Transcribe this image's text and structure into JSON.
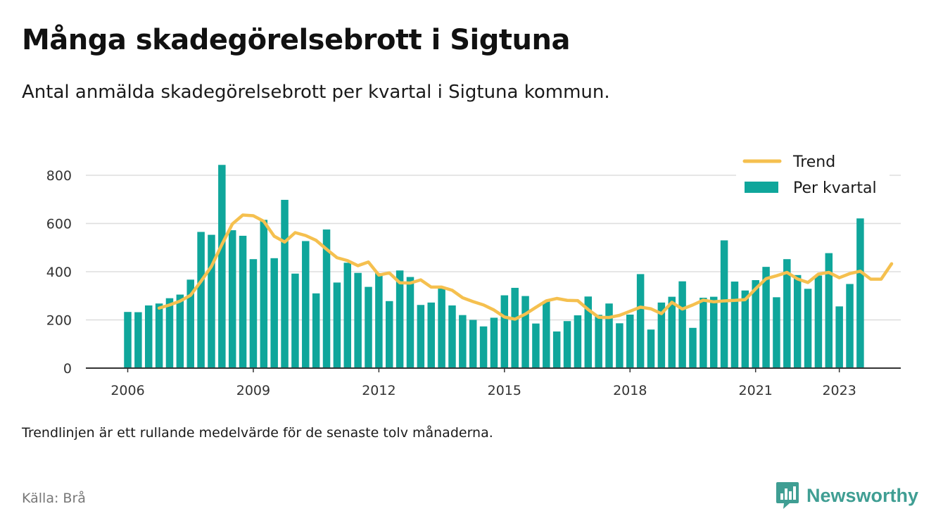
{
  "title": "Många skadegörelsebrott i Sigtuna",
  "subtitle": "Antal anmälda skadegörelsebrott per kvartal i Sigtuna kommun.",
  "note": "Trendlinjen är ett rullande medelvärde för de senaste tolv månaderna.",
  "source": "Källa: Brå",
  "brand": {
    "name": "Newsworthy",
    "icon": "newsworthy-logo-icon",
    "color": "#3f9e93"
  },
  "colors": {
    "bars": "#0fa69b",
    "trend": "#f5c04f",
    "grid": "#dddddd",
    "axis": "#333333"
  },
  "chart_data": {
    "type": "bar",
    "title": "Många skadegörelsebrott i Sigtuna",
    "xlabel": "",
    "ylabel": "",
    "ylim": [
      0,
      860
    ],
    "y_ticks": [
      0,
      200,
      400,
      600,
      800
    ],
    "x_tick_labels": [
      "2006",
      "2009",
      "2012",
      "2015",
      "2018",
      "2021",
      "2023"
    ],
    "x_tick_quarter_index": [
      0,
      12,
      24,
      36,
      48,
      60,
      68
    ],
    "grid": true,
    "legend_placement": "top-right",
    "start": "2006 Q1",
    "series": [
      {
        "name": "Per kvartal",
        "type": "bar",
        "values": [
          233,
          232,
          260,
          268,
          290,
          305,
          367,
          565,
          553,
          843,
          572,
          549,
          452,
          615,
          456,
          698,
          392,
          527,
          310,
          575,
          355,
          437,
          395,
          337,
          394,
          278,
          405,
          378,
          262,
          272,
          331,
          260,
          220,
          200,
          173,
          209,
          302,
          333,
          299,
          185,
          278,
          152,
          195,
          219,
          297,
          221,
          268,
          186,
          222,
          390,
          160,
          272,
          296,
          360,
          167,
          292,
          296,
          530,
          359,
          322,
          365,
          420,
          294,
          452,
          386,
          329,
          384,
          477,
          256,
          349,
          621
        ]
      },
      {
        "name": "Trend",
        "type": "line",
        "start_index": 3,
        "values": [
          249,
          262,
          278,
          302,
          360,
          422,
          513,
          598,
          635,
          632,
          609,
          547,
          523,
          562,
          550,
          530,
          493,
          458,
          446,
          425,
          440,
          386,
          395,
          354,
          353,
          366,
          336,
          336,
          323,
          292,
          276,
          262,
          241,
          212,
          203,
          224,
          252,
          279,
          289,
          281,
          280,
          243,
          211,
          210,
          219,
          236,
          253,
          246,
          226,
          273,
          245,
          262,
          282,
          275,
          279,
          281,
          284,
          329,
          371,
          383,
          397,
          370,
          355,
          390,
          397,
          375,
          392,
          402,
          369,
          369,
          433
        ]
      }
    ]
  }
}
